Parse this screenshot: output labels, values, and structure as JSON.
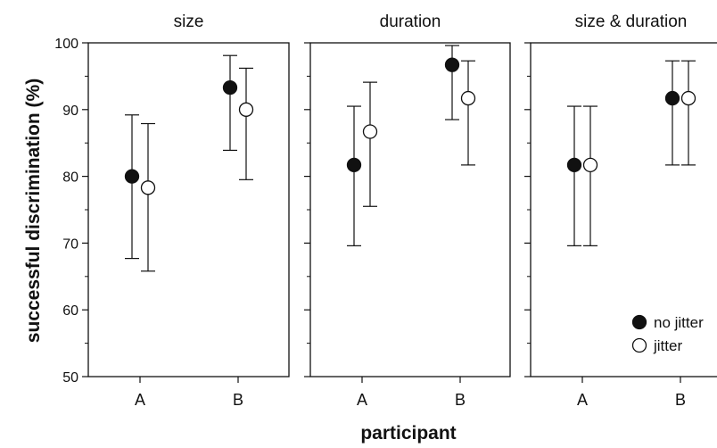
{
  "chart_data": [
    {
      "type": "scatter",
      "title": "size",
      "categories": [
        "A",
        "B"
      ],
      "ylim": [
        50,
        100
      ],
      "series": [
        {
          "name": "no jitter",
          "values": [
            80.0,
            93.3
          ],
          "lower": [
            67.7,
            83.9
          ],
          "upper": [
            89.2,
            98.1
          ],
          "marker": "filled"
        },
        {
          "name": "jitter",
          "values": [
            78.3,
            90.0
          ],
          "lower": [
            65.8,
            79.5
          ],
          "upper": [
            87.9,
            96.2
          ],
          "marker": "open"
        }
      ]
    },
    {
      "type": "scatter",
      "title": "duration",
      "categories": [
        "A",
        "B"
      ],
      "ylim": [
        50,
        100
      ],
      "series": [
        {
          "name": "no jitter",
          "values": [
            81.7,
            96.7
          ],
          "lower": [
            69.6,
            88.5
          ],
          "upper": [
            90.5,
            99.6
          ],
          "marker": "filled"
        },
        {
          "name": "jitter",
          "values": [
            86.7,
            91.7
          ],
          "lower": [
            75.5,
            81.7
          ],
          "upper": [
            94.1,
            97.3
          ],
          "marker": "open"
        }
      ]
    },
    {
      "type": "scatter",
      "title": "size & duration",
      "categories": [
        "A",
        "B"
      ],
      "ylim": [
        50,
        100
      ],
      "series": [
        {
          "name": "no jitter",
          "values": [
            81.7,
            91.7
          ],
          "lower": [
            69.6,
            81.7
          ],
          "upper": [
            90.5,
            97.3
          ],
          "marker": "filled"
        },
        {
          "name": "jitter",
          "values": [
            81.7,
            91.7
          ],
          "lower": [
            69.6,
            81.7
          ],
          "upper": [
            90.5,
            97.3
          ],
          "marker": "open"
        }
      ]
    }
  ],
  "axes": {
    "ylabel": "successful discrimination (%)",
    "xlabel": "participant",
    "yticks": [
      50,
      60,
      70,
      80,
      90,
      100
    ]
  },
  "legend": {
    "placement": "bottom-right",
    "items": [
      {
        "label": "no jitter",
        "marker": "filled"
      },
      {
        "label": "jitter",
        "marker": "open"
      }
    ]
  },
  "colors": {
    "ink": "#111111",
    "open_fill": "#ffffff"
  }
}
